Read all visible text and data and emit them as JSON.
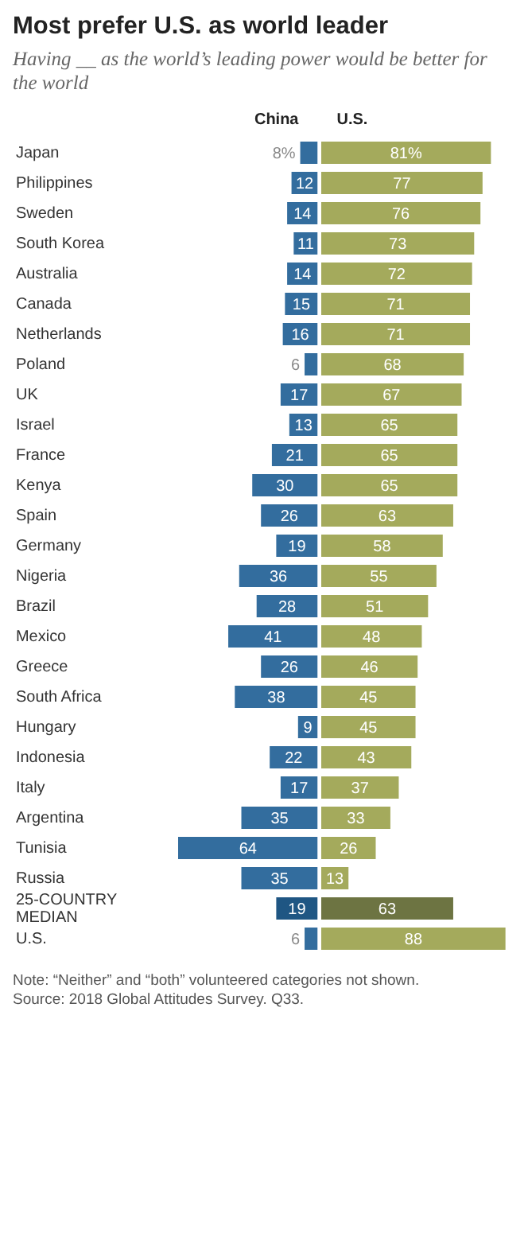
{
  "chart_data": [
    {
      "type": "bar",
      "orientation": "horizontal",
      "title": "Most prefer U.S. as world leader",
      "subtitle": "Having __ as the world’s leading power would be better for the world",
      "categories": [
        "Japan",
        "Philippines",
        "Sweden",
        "South Korea",
        "Australia",
        "Canada",
        "Netherlands",
        "Poland",
        "UK",
        "Israel",
        "France",
        "Kenya",
        "Spain",
        "Germany",
        "Nigeria",
        "Brazil",
        "Mexico",
        "Greece",
        "South Africa",
        "Hungary",
        "Indonesia",
        "Italy",
        "Argentina",
        "Tunisia",
        "Russia",
        "25-COUNTRY MEDIAN",
        "U.S."
      ],
      "series": [
        {
          "name": "China",
          "colors": [
            "#336d9e",
            "#336d9e",
            "#336d9e",
            "#336d9e",
            "#336d9e",
            "#336d9e",
            "#336d9e",
            "#336d9e",
            "#336d9e",
            "#336d9e",
            "#336d9e",
            "#336d9e",
            "#336d9e",
            "#336d9e",
            "#336d9e",
            "#336d9e",
            "#336d9e",
            "#336d9e",
            "#336d9e",
            "#336d9e",
            "#336d9e",
            "#336d9e",
            "#336d9e",
            "#336d9e",
            "#336d9e",
            "#1f5683",
            "#336d9e"
          ],
          "values": [
            8,
            12,
            14,
            11,
            14,
            15,
            16,
            6,
            17,
            13,
            21,
            30,
            26,
            19,
            36,
            28,
            41,
            26,
            38,
            9,
            22,
            17,
            35,
            64,
            35,
            19,
            6
          ],
          "value_labels": [
            "8%",
            "12",
            "14",
            "11",
            "14",
            "15",
            "16",
            "6",
            "17",
            "13",
            "21",
            "30",
            "26",
            "19",
            "36",
            "28",
            "41",
            "26",
            "38",
            "9",
            "22",
            "17",
            "35",
            "64",
            "35",
            "19",
            "6"
          ]
        }
      ],
      "annotations": [
        "Note: “Neither” and “both” volunteered categories not shown.",
        "Source: 2018 Global Attitudes Survey. Q33."
      ]
    },
    {
      "type": "bar",
      "orientation": "horizontal",
      "tick_labels": false,
      "categories": [
        null,
        null,
        null,
        null,
        null,
        null,
        null,
        null,
        null,
        null,
        null,
        null,
        null,
        null,
        null,
        null,
        null,
        null,
        null,
        null,
        null,
        null,
        null,
        null,
        null,
        null,
        null
      ],
      "series": [
        {
          "name": "U.S.",
          "colors": [
            "#a4aa5c",
            "#a4aa5c",
            "#a4aa5c",
            "#a4aa5c",
            "#a4aa5c",
            "#a4aa5c",
            "#a4aa5c",
            "#a4aa5c",
            "#a4aa5c",
            "#a4aa5c",
            "#a4aa5c",
            "#a4aa5c",
            "#a4aa5c",
            "#a4aa5c",
            "#a4aa5c",
            "#a4aa5c",
            "#a4aa5c",
            "#a4aa5c",
            "#a4aa5c",
            "#a4aa5c",
            "#a4aa5c",
            "#a4aa5c",
            "#a4aa5c",
            "#a4aa5c",
            "#a4aa5c",
            "#6d7442",
            "#a4aa5c"
          ],
          "values": [
            81,
            77,
            76,
            73,
            72,
            71,
            71,
            68,
            67,
            65,
            65,
            65,
            63,
            58,
            55,
            51,
            48,
            46,
            45,
            45,
            43,
            37,
            33,
            26,
            13,
            63,
            88
          ],
          "value_labels": [
            "81%",
            "77",
            "76",
            "73",
            "72",
            "71",
            "71",
            "68",
            "67",
            "65",
            "65",
            "65",
            "63",
            "58",
            "55",
            "51",
            "48",
            "46",
            "45",
            "45",
            "43",
            "37",
            "33",
            "26",
            "13",
            "63",
            "88"
          ]
        }
      ]
    }
  ]
}
